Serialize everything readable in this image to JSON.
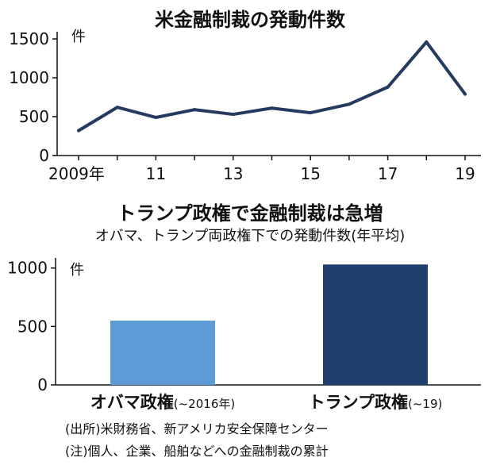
{
  "chart_data": [
    {
      "type": "line",
      "title": "米金融制裁の発動件数",
      "unit": "件",
      "x": [
        2009,
        2010,
        2011,
        2012,
        2013,
        2014,
        2015,
        2016,
        2017,
        2018,
        2019
      ],
      "x_tick_labels": [
        {
          "x": 2009,
          "label": "2009年"
        },
        {
          "x": 2011,
          "label": "11"
        },
        {
          "x": 2013,
          "label": "13"
        },
        {
          "x": 2015,
          "label": "15"
        },
        {
          "x": 2017,
          "label": "17"
        },
        {
          "x": 2019,
          "label": "19"
        }
      ],
      "y_ticks": [
        0,
        500,
        1000,
        1500
      ],
      "ylim": [
        0,
        1500
      ],
      "series": [
        {
          "values": [
            320,
            620,
            490,
            590,
            530,
            610,
            550,
            660,
            880,
            1460,
            790
          ],
          "color": "#253a5e"
        }
      ],
      "grid": false,
      "legend": "none"
    },
    {
      "type": "bar",
      "title": "トランプ政権で金融制裁は急増",
      "subtitle": "オバマ、トランプ両政権下での発動件数(年平均)",
      "unit": "件",
      "categories": [
        {
          "name": "オバマ政権",
          "note": "(~2016年)"
        },
        {
          "name": "トランプ政権",
          "note": "(~19)"
        }
      ],
      "values": [
        550,
        1030
      ],
      "colors": [
        "#5d9bd6",
        "#1e3f6e"
      ],
      "y_ticks": [
        0,
        500,
        1000
      ],
      "ylim": [
        0,
        1100
      ],
      "grid": false,
      "legend": "none"
    }
  ],
  "notes": [
    "(出所)米財務省、新アメリカ安全保障センター",
    "(注)個人、企業、船舶などへの金融制裁の累計"
  ]
}
